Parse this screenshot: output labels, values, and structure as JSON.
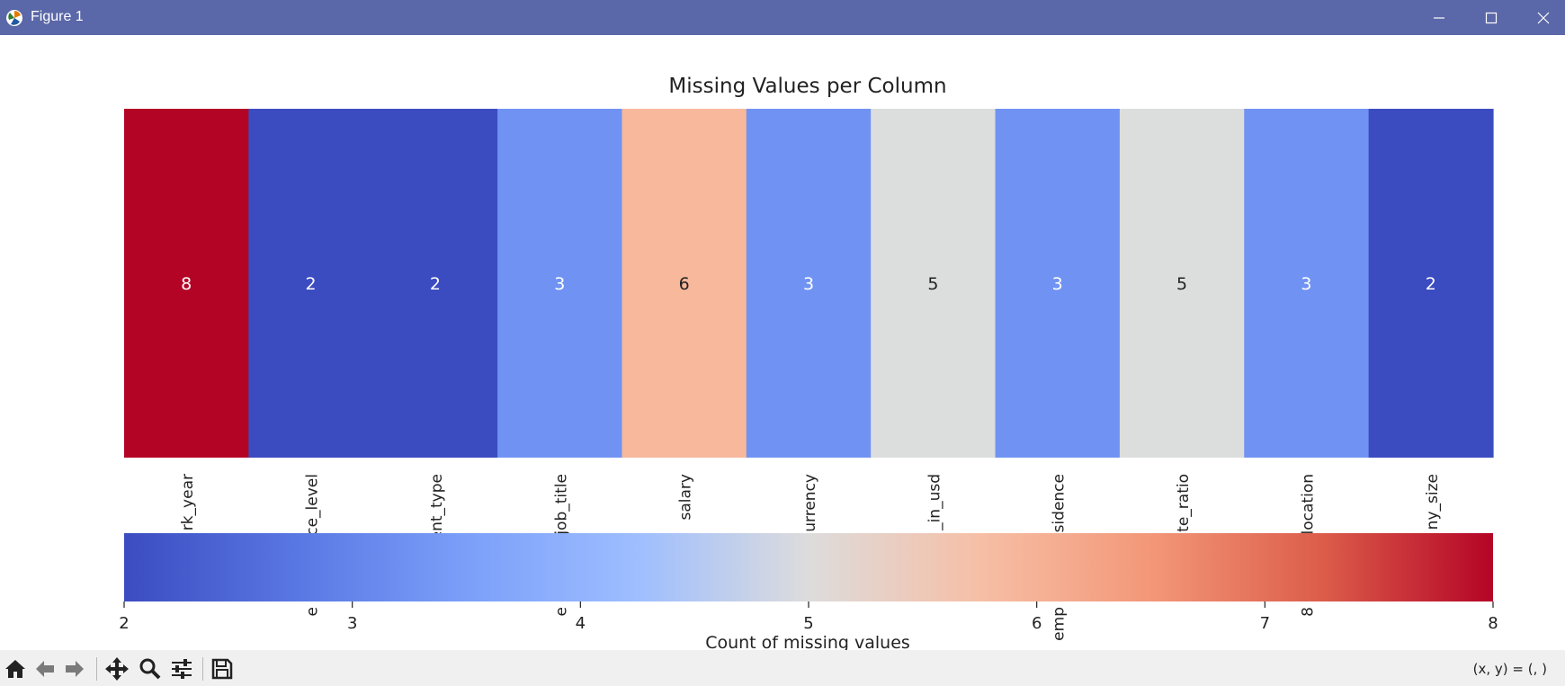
{
  "window": {
    "title": "Figure 1",
    "minimize_icon": "minimize-icon",
    "maximize_icon": "maximize-icon",
    "close_icon": "close-icon"
  },
  "chart_data": {
    "type": "heatmap",
    "title": "Missing Values per Column",
    "categories": [
      "rk_year",
      "ce_level",
      "ent_type",
      "job_title",
      "salary",
      "urrency",
      "_in_usd",
      "sidence",
      "te_ratio",
      "location",
      "ny_size"
    ],
    "values": [
      8,
      2,
      2,
      3,
      6,
      3,
      5,
      3,
      5,
      3,
      2
    ],
    "colors": [
      "#b40426",
      "#3b4cc0",
      "#3b4cc0",
      "#7093f3",
      "#f7b89c",
      "#7093f3",
      "#dcdddd",
      "#7093f3",
      "#dcdddd",
      "#7093f3",
      "#3b4cc0"
    ],
    "annotation_colors": [
      "#ffffff",
      "#ffffff",
      "#ffffff",
      "#ffffff",
      "#222222",
      "#ffffff",
      "#222222",
      "#ffffff",
      "#222222",
      "#ffffff",
      "#ffffff"
    ],
    "colormap": "coolwarm",
    "colorbar": {
      "label": "Count of missing values",
      "range": [
        2,
        8
      ],
      "ticks": [
        "2",
        "3",
        "4",
        "5",
        "6",
        "7",
        "8"
      ],
      "orientation": "horizontal"
    },
    "overlapping_tick_fragments": [
      "e",
      "e",
      "emp",
      "8"
    ]
  },
  "toolbar": {
    "icons": [
      "home-icon",
      "back-icon",
      "forward-icon",
      "pan-icon",
      "zoom-icon",
      "configure-icon",
      "save-icon"
    ],
    "coords_text": "(x, y) = (, )"
  }
}
